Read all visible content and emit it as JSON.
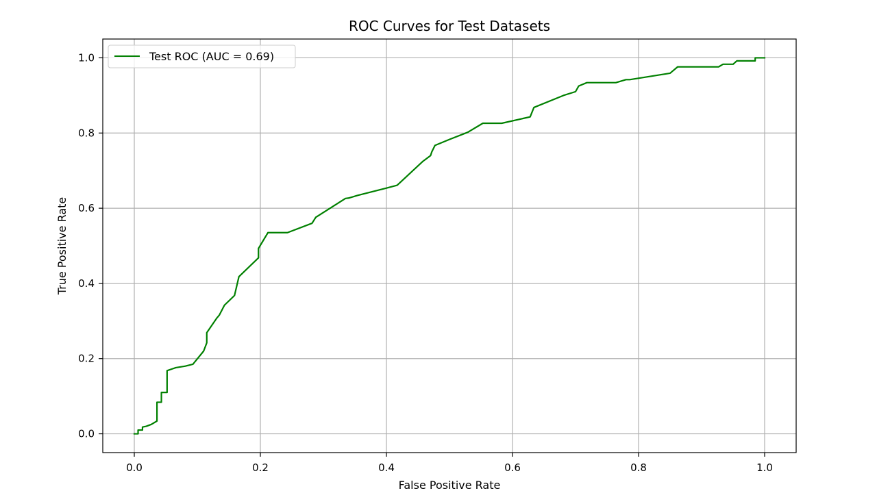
{
  "chart_data": {
    "type": "line",
    "title": "ROC Curves for Test Datasets",
    "xlabel": "False Positive Rate",
    "ylabel": "True Positive Rate",
    "xlim": [
      -0.05,
      1.05
    ],
    "ylim": [
      -0.05,
      1.05
    ],
    "xticks": [
      0.0,
      0.2,
      0.4,
      0.6,
      0.8,
      1.0
    ],
    "xtick_labels": [
      "0.0",
      "0.2",
      "0.4",
      "0.6",
      "0.8",
      "1.0"
    ],
    "yticks": [
      0.0,
      0.2,
      0.4,
      0.6,
      0.8,
      1.0
    ],
    "ytick_labels": [
      "0.0",
      "0.2",
      "0.4",
      "0.6",
      "0.8",
      "1.0"
    ],
    "grid": true,
    "legend": {
      "location": "top-left",
      "entries": [
        "Test ROC (AUC = 0.69)"
      ]
    },
    "series": [
      {
        "name": "Test ROC (AUC = 0.69)",
        "color": "#008000",
        "x": [
          0.0,
          0.006,
          0.006,
          0.013,
          0.013,
          0.019,
          0.027,
          0.036,
          0.036,
          0.043,
          0.043,
          0.052,
          0.052,
          0.066,
          0.081,
          0.093,
          0.11,
          0.115,
          0.115,
          0.131,
          0.135,
          0.143,
          0.159,
          0.166,
          0.197,
          0.197,
          0.212,
          0.243,
          0.282,
          0.288,
          0.335,
          0.34,
          0.354,
          0.399,
          0.417,
          0.458,
          0.47,
          0.472,
          0.477,
          0.5,
          0.529,
          0.553,
          0.583,
          0.628,
          0.634,
          0.681,
          0.7,
          0.705,
          0.718,
          0.764,
          0.78,
          0.786,
          0.85,
          0.862,
          0.927,
          0.934,
          0.95,
          0.956,
          0.985,
          0.985,
          1.0
        ],
        "y": [
          0.0,
          0.0,
          0.01,
          0.01,
          0.018,
          0.02,
          0.025,
          0.034,
          0.084,
          0.084,
          0.11,
          0.11,
          0.168,
          0.176,
          0.18,
          0.185,
          0.22,
          0.242,
          0.269,
          0.308,
          0.316,
          0.342,
          0.368,
          0.418,
          0.468,
          0.493,
          0.535,
          0.535,
          0.56,
          0.576,
          0.626,
          0.627,
          0.634,
          0.653,
          0.661,
          0.725,
          0.74,
          0.75,
          0.767,
          0.783,
          0.802,
          0.826,
          0.826,
          0.843,
          0.868,
          0.9,
          0.91,
          0.925,
          0.934,
          0.934,
          0.942,
          0.942,
          0.959,
          0.976,
          0.976,
          0.983,
          0.983,
          0.992,
          0.992,
          1.0,
          1.0
        ]
      }
    ]
  }
}
